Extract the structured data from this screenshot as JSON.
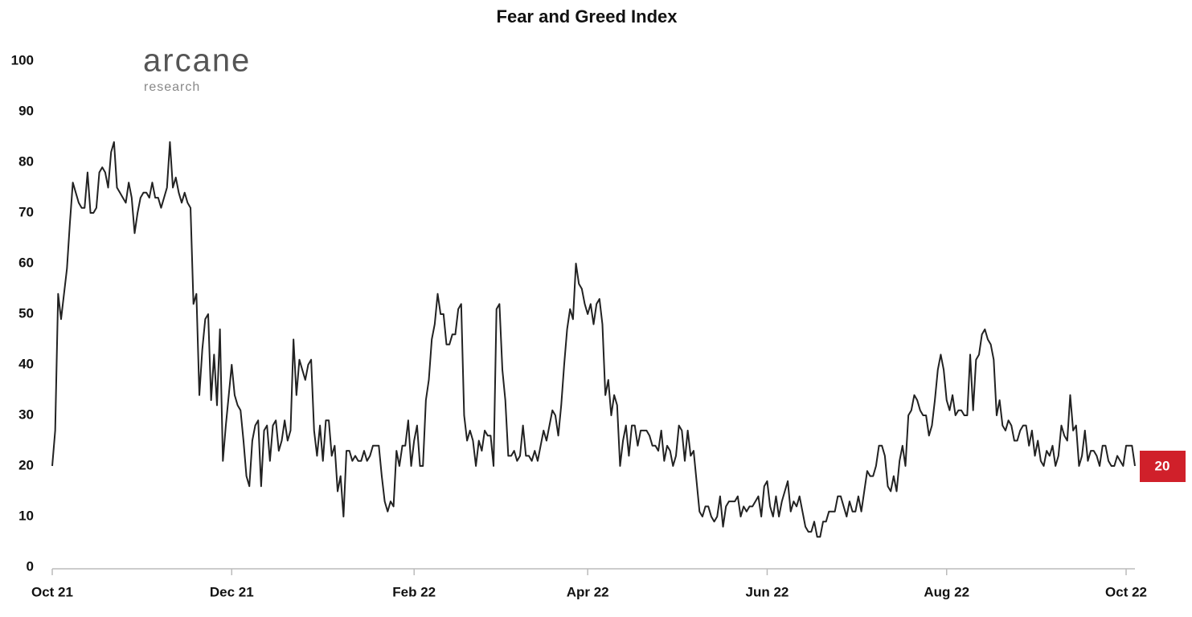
{
  "chart_data": {
    "type": "line",
    "title": "Fear and Greed Index",
    "watermark": {
      "name": "arcane",
      "tagline": "research"
    },
    "values": [
      20,
      27,
      54,
      49,
      54,
      59,
      68,
      76,
      74,
      72,
      71,
      71,
      78,
      70,
      70,
      71,
      78,
      79,
      78,
      75,
      82,
      84,
      75,
      74,
      73,
      72,
      76,
      73,
      66,
      70,
      73,
      74,
      74,
      73,
      76,
      73,
      73,
      71,
      73,
      75,
      84,
      75,
      77,
      74,
      72,
      74,
      72,
      71,
      52,
      54,
      34,
      43,
      49,
      50,
      33,
      42,
      32,
      47,
      21,
      28,
      34,
      40,
      34,
      32,
      31,
      25,
      18,
      16,
      25,
      28,
      29,
      16,
      27,
      28,
      21,
      28,
      29,
      23,
      25,
      29,
      25,
      27,
      45,
      34,
      41,
      39,
      37,
      40,
      41,
      27,
      22,
      28,
      21,
      29,
      29,
      22,
      24,
      15,
      18,
      10,
      23,
      23,
      21,
      22,
      21,
      21,
      23,
      21,
      22,
      24,
      24,
      24,
      18,
      13,
      11,
      13,
      12,
      23,
      20,
      24,
      24,
      29,
      20,
      25,
      28,
      20,
      20,
      33,
      37,
      45,
      48,
      54,
      50,
      50,
      44,
      44,
      46,
      46,
      51,
      52,
      30,
      25,
      27,
      25,
      20,
      25,
      23,
      27,
      26,
      26,
      20,
      51,
      52,
      39,
      33,
      22,
      22,
      23,
      21,
      22,
      28,
      22,
      22,
      21,
      23,
      21,
      24,
      27,
      25,
      28,
      31,
      30,
      26,
      32,
      40,
      47,
      51,
      49,
      60,
      56,
      55,
      52,
      50,
      52,
      48,
      52,
      53,
      48,
      34,
      37,
      30,
      34,
      32,
      20,
      25,
      28,
      22,
      28,
      28,
      24,
      27,
      27,
      27,
      26,
      24,
      24,
      23,
      27,
      21,
      24,
      23,
      20,
      22,
      28,
      27,
      21,
      27,
      22,
      23,
      17,
      11,
      10,
      12,
      12,
      10,
      9,
      10,
      14,
      8,
      12,
      13,
      13,
      13,
      14,
      10,
      12,
      11,
      12,
      12,
      13,
      14,
      10,
      16,
      17,
      12,
      10,
      14,
      10,
      13,
      15,
      17,
      11,
      13,
      12,
      14,
      11,
      8,
      7,
      7,
      9,
      6,
      6,
      9,
      9,
      11,
      11,
      11,
      14,
      14,
      12,
      10,
      13,
      11,
      11,
      14,
      11,
      15,
      19,
      18,
      18,
      20,
      24,
      24,
      22,
      16,
      15,
      18,
      15,
      21,
      24,
      20,
      30,
      31,
      34,
      33,
      31,
      30,
      30,
      26,
      28,
      33,
      39,
      42,
      39,
      33,
      31,
      34,
      30,
      31,
      31,
      30,
      30,
      42,
      31,
      41,
      42,
      46,
      47,
      45,
      44,
      41,
      30,
      33,
      28,
      27,
      29,
      28,
      25,
      25,
      27,
      28,
      28,
      24,
      27,
      22,
      25,
      21,
      20,
      23,
      22,
      24,
      20,
      22,
      28,
      26,
      25,
      34,
      27,
      28,
      20,
      22,
      27,
      21,
      23,
      23,
      22,
      20,
      24,
      24,
      21,
      20,
      20,
      22,
      21,
      20,
      24,
      24,
      24,
      20
    ],
    "color": "#222222",
    "last_label_color": "#d0202a",
    "xlim": [
      0,
      368
    ],
    "xticks": [
      {
        "value": 0,
        "label": "Oct 21"
      },
      {
        "value": 61,
        "label": "Dec 21"
      },
      {
        "value": 123,
        "label": "Feb 22"
      },
      {
        "value": 182,
        "label": "Apr 22"
      },
      {
        "value": 243,
        "label": "Jun 22"
      },
      {
        "value": 304,
        "label": "Aug 22"
      },
      {
        "value": 365,
        "label": "Oct 22"
      }
    ],
    "ylim": [
      0,
      100
    ],
    "yticks": [
      0,
      10,
      20,
      30,
      40,
      50,
      60,
      70,
      80,
      90,
      100
    ],
    "grid": false
  }
}
